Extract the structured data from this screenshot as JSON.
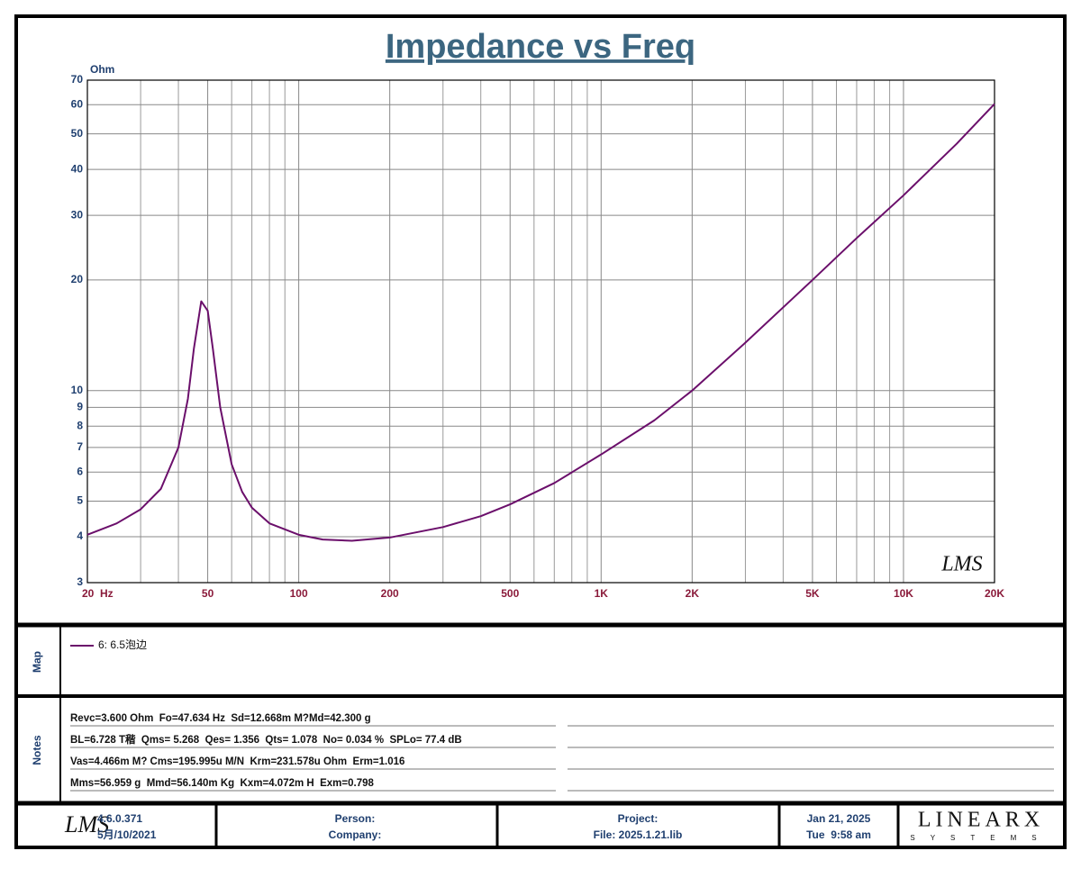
{
  "chart_data": {
    "type": "line",
    "title": "Impedance vs Freq",
    "y_label": "Ohm",
    "watermark": "LMS",
    "log_x": true,
    "log_y": true,
    "grid": true,
    "xlim": [
      20,
      20000
    ],
    "ylim": [
      3,
      70
    ],
    "xticks": [
      {
        "value": 20,
        "label": "20  Hz"
      },
      50,
      100,
      200,
      500,
      {
        "value": 1000,
        "label": "1K"
      },
      {
        "value": 2000,
        "label": "2K"
      },
      {
        "value": 5000,
        "label": "5K"
      },
      {
        "value": 10000,
        "label": "10K"
      },
      {
        "value": 20000,
        "label": "20K"
      }
    ],
    "yticks": [
      3,
      4,
      5,
      6,
      7,
      8,
      9,
      10,
      20,
      30,
      40,
      50,
      60,
      70
    ],
    "x": [
      20,
      25,
      30,
      35,
      40,
      43,
      45,
      47.6,
      50,
      52,
      55,
      60,
      65,
      70,
      80,
      100,
      120,
      150,
      200,
      300,
      400,
      500,
      700,
      1000,
      1500,
      2000,
      3000,
      5000,
      7000,
      10000,
      15000,
      20000
    ],
    "series": [
      {
        "name": "6: 6.5泡边",
        "color": "#6b0f6b",
        "values": [
          4.05,
          4.35,
          4.75,
          5.4,
          7.0,
          9.5,
          13,
          17.5,
          16.5,
          13,
          9.0,
          6.3,
          5.3,
          4.8,
          4.35,
          4.05,
          3.93,
          3.9,
          3.98,
          4.25,
          4.55,
          4.9,
          5.6,
          6.7,
          8.3,
          10.0,
          13.5,
          20,
          26,
          34,
          47,
          60.3
        ]
      }
    ]
  },
  "map": {
    "label": "Map"
  },
  "notes": {
    "label": "Notes",
    "lines": [
      "Revc=3.600 Ohm  Fo=47.634 Hz  Sd=12.668m M?Md=42.300 g",
      "BL=6.728 T稭  Qms= 5.268  Qes= 1.356  Qts= 1.078  No= 0.034 %  SPLo= 77.4 dB",
      "Vas=4.466m M? Cms=195.995u M/N  Krm=231.578u Ohm  Erm=1.016",
      "Mms=56.959 g  Mmd=56.140m Kg  Kxm=4.072m H  Exm=0.798"
    ]
  },
  "footer": {
    "logo": "LMS",
    "version": "4.6.0.371",
    "build_date": "5月/10/2021",
    "person": "Person:",
    "company": "Company:",
    "project": "Project:",
    "file": "File: 2025.1.21.lib",
    "date": "Jan 21, 2025",
    "time": "Tue  9:58 am",
    "brand": "LINEARX",
    "brand_sub": "SYSTEMS"
  }
}
